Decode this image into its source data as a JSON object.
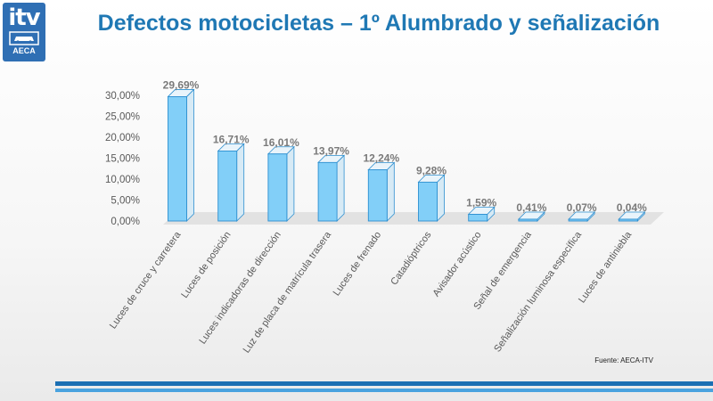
{
  "logo": {
    "mark": "itv",
    "sub": "AECA"
  },
  "title": "Defectos motocicletas – 1º Alumbrado y señalización",
  "source": "Fuente: AECA-ITV",
  "colors": {
    "bar_front": "#82cff8",
    "bar_side": "#d7eaf5",
    "bar_top": "#e9f4fb",
    "bar_edge": "#2d8fd0",
    "title": "#1f78b4"
  },
  "chart_data": {
    "type": "bar",
    "title": "Defectos motocicletas – 1º Alumbrado y señalización",
    "categories": [
      "Luces de cruce y carretera",
      "Luces de posición",
      "Luces indicadoras de dirección",
      "Luz de placa de matrícula trasera",
      "Luces de frenado",
      "Catadióptricos",
      "Avisador acústico",
      "Señal de emergencia",
      "Señalización luminosa específica",
      "Luces de antiniebla"
    ],
    "values": [
      29.69,
      16.71,
      16.01,
      13.97,
      12.24,
      9.28,
      1.59,
      0.41,
      0.07,
      0.04
    ],
    "value_labels": [
      "29,69%",
      "16,71%",
      "16,01%",
      "13,97%",
      "12,24%",
      "9,28%",
      "1,59%",
      "0,41%",
      "0,07%",
      "0,04%"
    ],
    "yticks": [
      0,
      5,
      10,
      15,
      20,
      25,
      30
    ],
    "ytick_labels": [
      "0,00%",
      "5,00%",
      "10,00%",
      "15,00%",
      "20,00%",
      "25,00%",
      "30,00%"
    ],
    "ylim": [
      0,
      30
    ],
    "xlabel": "",
    "ylabel": "",
    "grid": false,
    "legend": "none"
  }
}
